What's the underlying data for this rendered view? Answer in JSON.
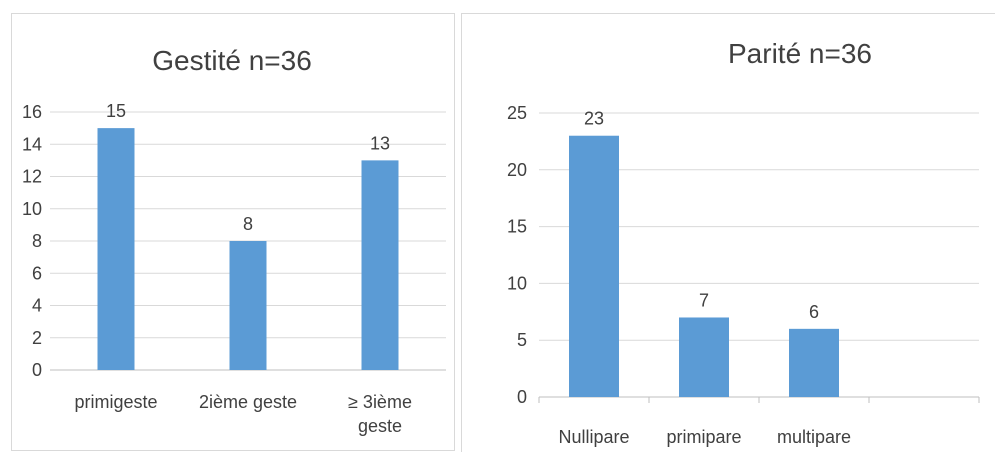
{
  "chart_data": [
    {
      "type": "bar",
      "title": "Gestité n=36",
      "categories": [
        [
          "primigeste"
        ],
        [
          "2ième geste"
        ],
        [
          "≥ 3ième",
          "geste"
        ]
      ],
      "values": [
        15,
        8,
        13
      ],
      "ylim": [
        0,
        16
      ],
      "yticks": [
        "0",
        "2",
        "4",
        "6",
        "8",
        "10",
        "12",
        "14",
        "16"
      ],
      "grid": true,
      "bar_color": "#5b9bd5"
    },
    {
      "type": "bar",
      "title": "Parité n=36",
      "categories": [
        [
          "Nullipare"
        ],
        [
          "primipare"
        ],
        [
          "multipare"
        ],
        [
          ""
        ]
      ],
      "values": [
        23,
        7,
        6,
        null
      ],
      "ylim": [
        0,
        25
      ],
      "yticks": [
        "0",
        "5",
        "10",
        "15",
        "20",
        "25"
      ],
      "grid": true,
      "bar_color": "#5b9bd5"
    }
  ]
}
